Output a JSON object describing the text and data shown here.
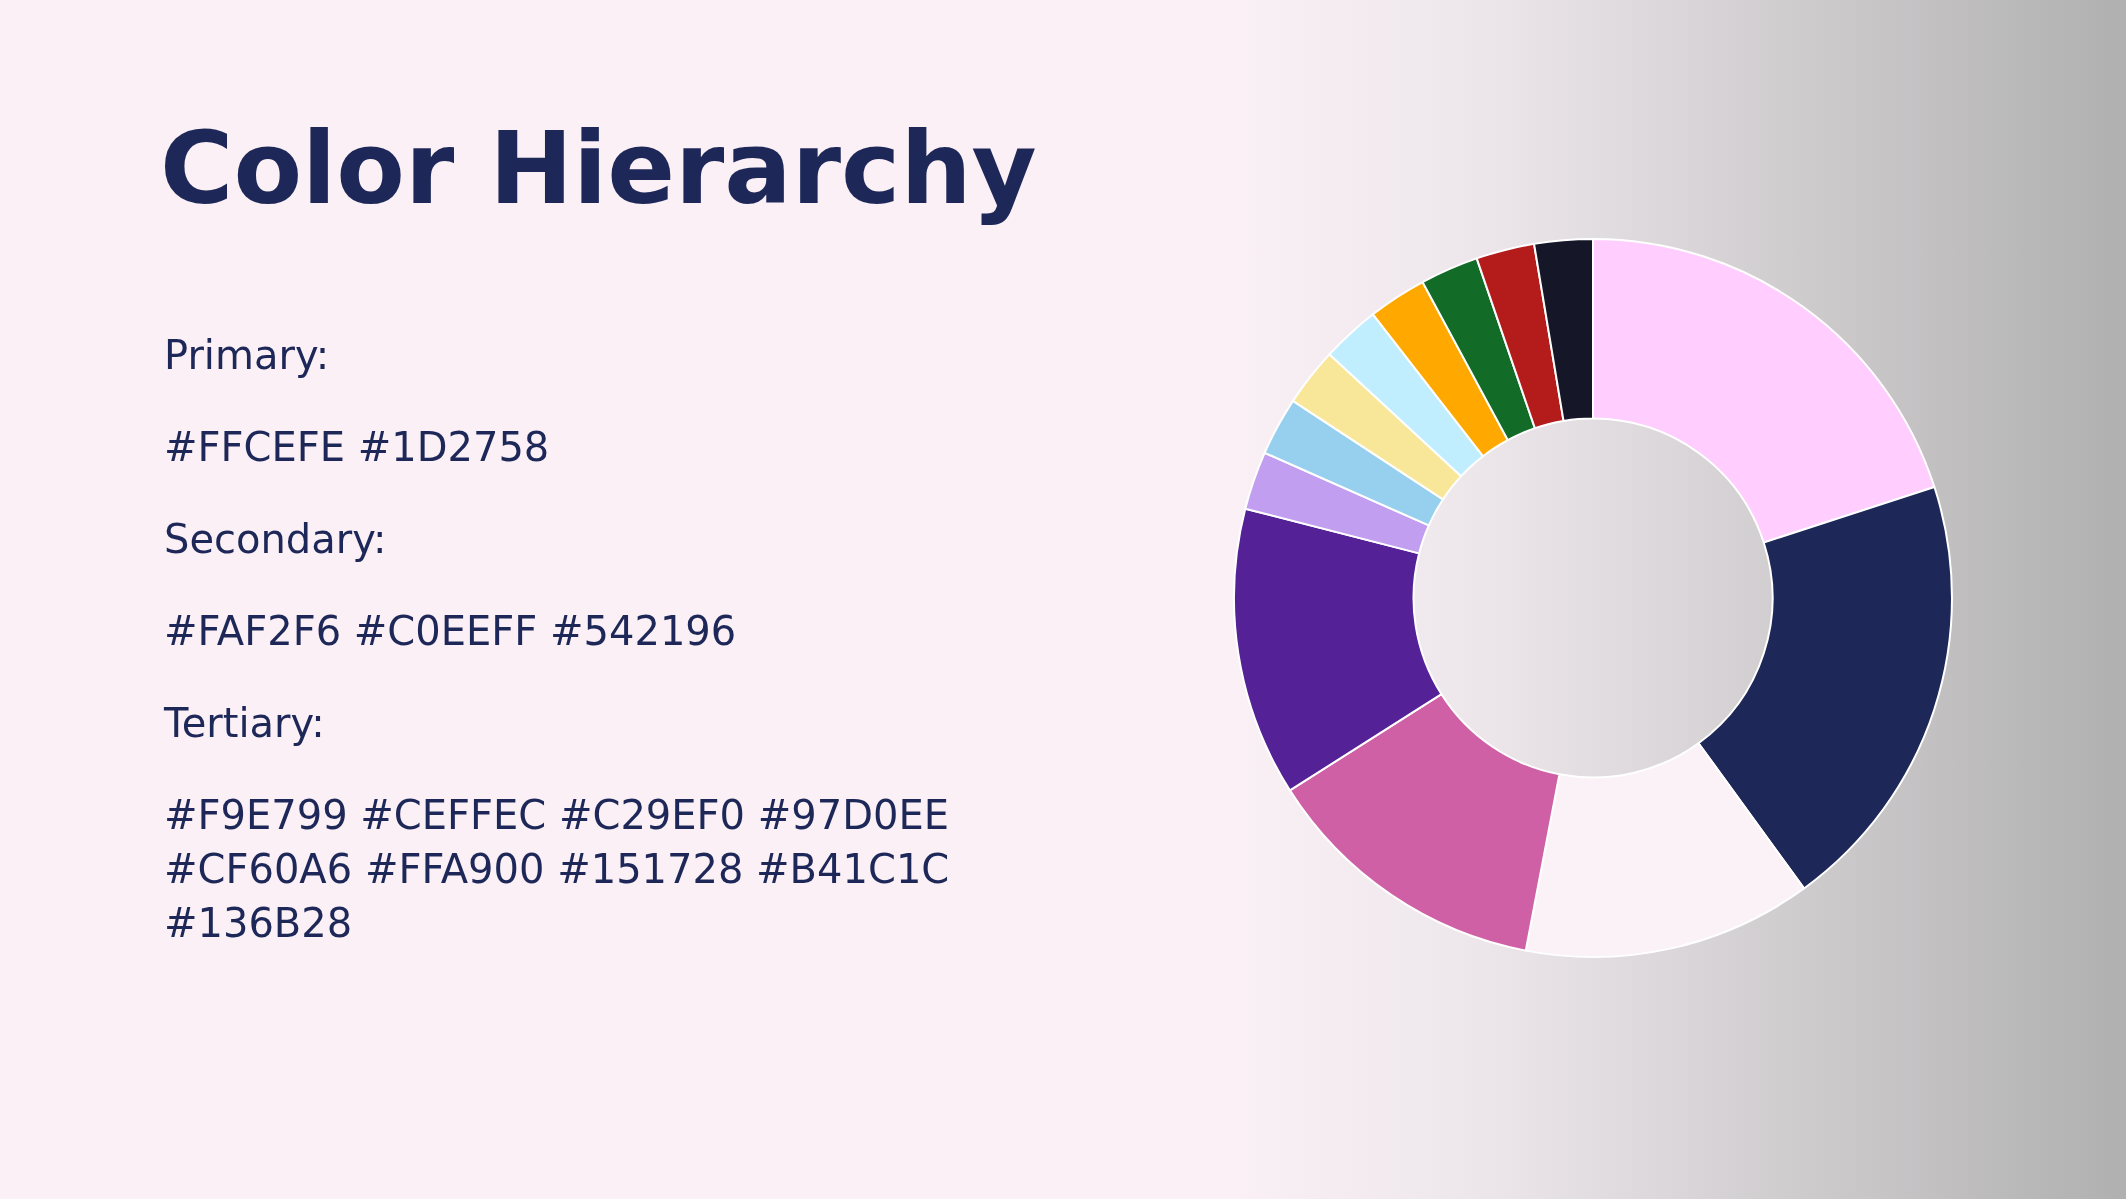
{
  "chart_data": {
    "type": "donut",
    "title": "Color Hierarchy",
    "annotations": [
      "Primary:",
      "#FFCEFE #1D2758",
      "Secondary:",
      "#FAF2F6 #C0EEFF #542196",
      "Tertiary:",
      "#F9E799 #CEFFEC #C29EF0 #97D0EE #CF60A6 #FFA900 #151728 #B41C1C #136B28"
    ],
    "categories": [
      null,
      null,
      null,
      null,
      null,
      null,
      null,
      null,
      null,
      null,
      null,
      null,
      null
    ],
    "values": [
      20,
      20,
      13,
      13,
      13,
      2.625,
      2.625,
      2.625,
      2.625,
      2.625,
      2.625,
      2.625,
      2.625
    ],
    "colors": [
      "#ffcefe",
      "#1d2758",
      "#faf2f6",
      "#cf60a6",
      "#542196",
      "#c29ef0",
      "#97d0ee",
      "#f9e799",
      "#c0eeff",
      "#ffa900",
      "#136b28",
      "#b41c1c",
      "#151728"
    ],
    "legend": false
  }
}
